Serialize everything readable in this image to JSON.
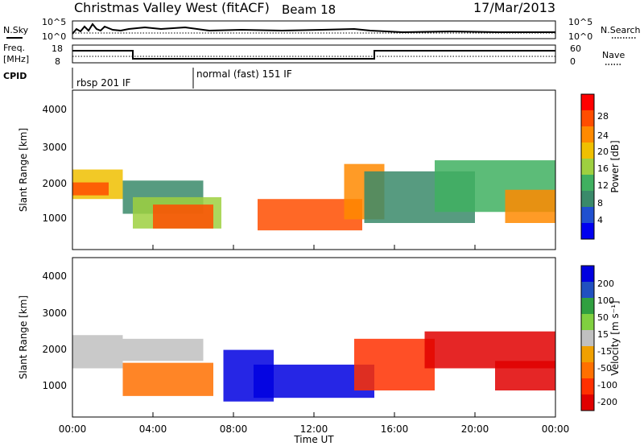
{
  "header": {
    "station": "Christmas Valley West (fitACF)",
    "beam": "Beam 18",
    "date": "17/Mar/2013"
  },
  "noise_panel": {
    "left_label": "N.Sky",
    "right_label": "N.Search",
    "left_ticks": [
      "10^5",
      "10^0"
    ],
    "right_ticks": [
      "10^5",
      "10^0"
    ]
  },
  "freq_panel": {
    "left_label_line1": "Freq.",
    "left_label_line2": "[MHz]",
    "left_ticks": [
      "18",
      "8"
    ],
    "right_ticks": [
      "60",
      "0"
    ],
    "right_label": "Nave"
  },
  "cpid_panel": {
    "label": "CPID",
    "modes": [
      {
        "name": "rbsp 201 IF",
        "start_hour": 0,
        "end_hour": 6
      },
      {
        "name": "normal (fast) 151 IF",
        "start_hour": 6,
        "end_hour": 24
      }
    ]
  },
  "power_panel": {
    "ylabel": "Slant Range [km]",
    "yticks": [
      "1000",
      "2000",
      "3000",
      "4000"
    ],
    "colorbar_label": "Power [dB]",
    "colorbar_ticks": [
      "28",
      "24",
      "20",
      "16",
      "12",
      "8",
      "4"
    ],
    "colors": [
      "#ff0000",
      "#ff4d00",
      "#ff8a00",
      "#f0c000",
      "#9ed040",
      "#40b060",
      "#3a8a6a",
      "#2050d0",
      "#0000f0"
    ]
  },
  "velocity_panel": {
    "ylabel": "Slant Range [km]",
    "yticks": [
      "1000",
      "2000",
      "3000",
      "4000"
    ],
    "colorbar_label": "Velocity [m s⁻¹]",
    "colorbar_ticks": [
      "200",
      "100",
      "50",
      "15",
      "-15",
      "-50",
      "-100",
      "-200"
    ],
    "colors": [
      "#0000e0",
      "#2050c0",
      "#30a040",
      "#80d040",
      "#c0c0c0",
      "#f0a000",
      "#ff7000",
      "#ff3000",
      "#e00000"
    ]
  },
  "time_axis": {
    "xlabel": "Time UT",
    "ticks": [
      "00:00",
      "04:00",
      "08:00",
      "12:00",
      "16:00",
      "20:00",
      "00:00"
    ]
  },
  "chart_data": {
    "type": "heatmap",
    "x_unit": "hours UT",
    "xlim": [
      0,
      24
    ],
    "y_unit": "km",
    "ylim": [
      180,
      4500
    ],
    "frequency_MHz": [
      {
        "start_hour": 0,
        "end_hour": 3,
        "value": 18
      },
      {
        "start_hour": 3,
        "end_hour": 15,
        "value": 8
      },
      {
        "start_hour": 15,
        "end_hour": 24,
        "value": 18
      }
    ],
    "power_regions": [
      {
        "x0": 0.0,
        "x1": 2.5,
        "y0": 1550,
        "y1": 2350,
        "power_dB": 20
      },
      {
        "x0": 0.0,
        "x1": 1.8,
        "y0": 1650,
        "y1": 2000,
        "power_dB": 28
      },
      {
        "x0": 2.5,
        "x1": 6.5,
        "y0": 1150,
        "y1": 2050,
        "power_dB": 10
      },
      {
        "x0": 3.0,
        "x1": 7.4,
        "y0": 750,
        "y1": 1600,
        "power_dB": 18
      },
      {
        "x0": 4.0,
        "x1": 7.0,
        "y0": 750,
        "y1": 1400,
        "power_dB": 28
      },
      {
        "x0": 9.2,
        "x1": 14.4,
        "y0": 700,
        "y1": 1550,
        "power_dB": 28
      },
      {
        "x0": 13.5,
        "x1": 15.5,
        "y0": 1000,
        "y1": 2500,
        "power_dB": 24
      },
      {
        "x0": 14.5,
        "x1": 20.0,
        "y0": 900,
        "y1": 2300,
        "power_dB": 10
      },
      {
        "x0": 18.0,
        "x1": 24.0,
        "y0": 1200,
        "y1": 2600,
        "power_dB": 12
      },
      {
        "x0": 21.5,
        "x1": 24.0,
        "y0": 900,
        "y1": 1800,
        "power_dB": 22
      }
    ],
    "velocity_regions": [
      {
        "x0": 0.0,
        "x1": 2.5,
        "y0": 1500,
        "y1": 2400,
        "velocity_ms": 0
      },
      {
        "x0": 2.5,
        "x1": 6.5,
        "y0": 1700,
        "y1": 2300,
        "velocity_ms": 0
      },
      {
        "x0": 2.5,
        "x1": 7.0,
        "y0": 750,
        "y1": 1650,
        "velocity_ms": -60
      },
      {
        "x0": 7.5,
        "x1": 10.0,
        "y0": 600,
        "y1": 2000,
        "velocity_ms": 200
      },
      {
        "x0": 9.0,
        "x1": 15.0,
        "y0": 700,
        "y1": 1600,
        "velocity_ms": 200
      },
      {
        "x0": 14.0,
        "x1": 18.0,
        "y0": 900,
        "y1": 2300,
        "velocity_ms": -150
      },
      {
        "x0": 17.5,
        "x1": 24.0,
        "y0": 1500,
        "y1": 2500,
        "velocity_ms": -200
      },
      {
        "x0": 21.0,
        "x1": 24.0,
        "y0": 900,
        "y1": 1700,
        "velocity_ms": -200
      }
    ]
  }
}
